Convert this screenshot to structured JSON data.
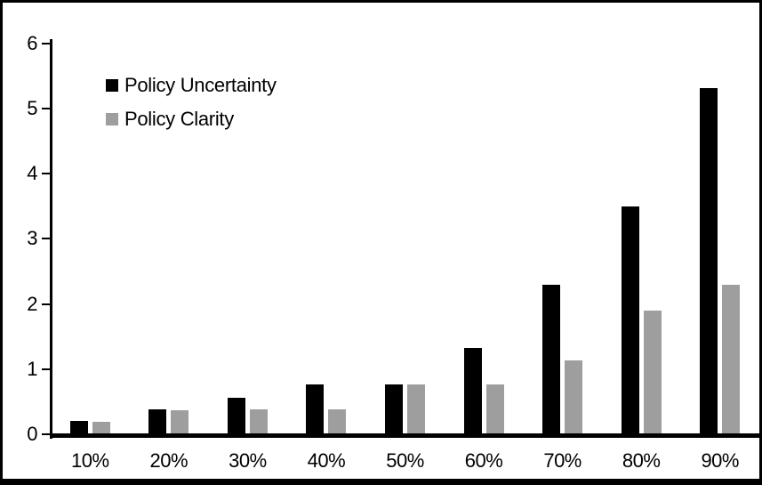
{
  "frame": {
    "background_color": "#FFFFFF",
    "border_color": "#000000"
  },
  "chart_data": {
    "type": "bar",
    "title": "",
    "xlabel": "",
    "ylabel": "",
    "categories": [
      "10%",
      "20%",
      "30%",
      "40%",
      "50%",
      "60%",
      "70%",
      "80%",
      "90%"
    ],
    "series": [
      {
        "name": "Policy Uncertainty",
        "color": "#000000",
        "values": [
          0.2,
          0.38,
          0.56,
          0.76,
          0.77,
          1.33,
          2.3,
          3.5,
          5.32
        ]
      },
      {
        "name": "Policy Clarity",
        "color": "#9E9E9E",
        "values": [
          0.19,
          0.37,
          0.38,
          0.38,
          0.77,
          0.77,
          1.14,
          1.9,
          2.3
        ]
      }
    ],
    "ylim": [
      0,
      6
    ],
    "yticks": [
      0,
      1,
      2,
      3,
      4,
      5,
      6
    ],
    "ytick_labels": [
      "0",
      "1",
      "2",
      "3",
      "4",
      "5",
      "6"
    ],
    "grid": false,
    "legend_position": "upper-left"
  }
}
